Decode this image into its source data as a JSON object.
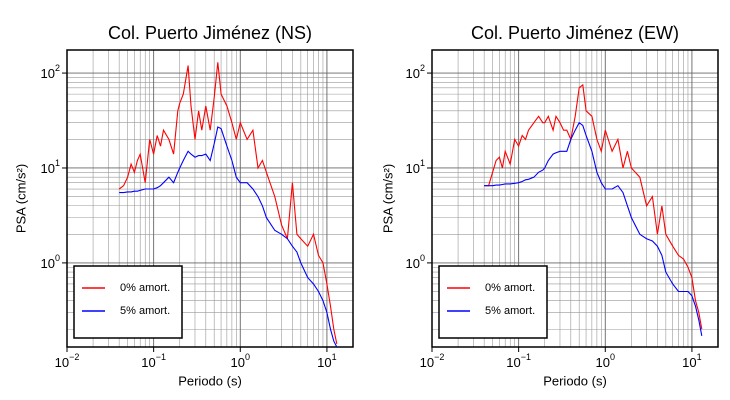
{
  "chart_data": [
    {
      "type": "line",
      "title": "Col. Puerto Jiménez (NS)",
      "xlabel": "Periodo (s)",
      "ylabel": "PSA (cm/s²)",
      "xscale": "log",
      "yscale": "log",
      "grid": true,
      "legend": "lower left",
      "xlim": [
        0.01,
        20
      ],
      "ylim": [
        0.13,
        175
      ],
      "xticks": [
        {
          "value": 0.01,
          "label": "10",
          "sup": "−2"
        },
        {
          "value": 0.1,
          "label": "10",
          "sup": "−1"
        },
        {
          "value": 1,
          "label": "10",
          "sup": "0"
        },
        {
          "value": 10,
          "label": "10",
          "sup": "1"
        }
      ],
      "yticks": [
        {
          "value": 1,
          "label": "10",
          "sup": "0"
        },
        {
          "value": 10,
          "label": "10",
          "sup": "1"
        },
        {
          "value": 100,
          "label": "10",
          "sup": "2"
        }
      ],
      "x": [
        0.04,
        0.045,
        0.05,
        0.055,
        0.06,
        0.065,
        0.07,
        0.08,
        0.09,
        0.1,
        0.11,
        0.12,
        0.13,
        0.15,
        0.17,
        0.19,
        0.2,
        0.22,
        0.25,
        0.27,
        0.3,
        0.33,
        0.36,
        0.4,
        0.45,
        0.5,
        0.55,
        0.6,
        0.7,
        0.8,
        0.9,
        1.0,
        1.2,
        1.4,
        1.6,
        1.8,
        2,
        2.5,
        3,
        3.5,
        4,
        4.5,
        5,
        6,
        7,
        8,
        9,
        10,
        11,
        12,
        13
      ],
      "series": [
        {
          "name": "0% amort.",
          "color": "#ff0000",
          "values": [
            6,
            6.5,
            8,
            11,
            9,
            12,
            14,
            7,
            20,
            14,
            22,
            17,
            25,
            20,
            14,
            40,
            48,
            60,
            120,
            45,
            20,
            40,
            25,
            45,
            25,
            55,
            130,
            60,
            45,
            30,
            20,
            30,
            20,
            25,
            10,
            12,
            9,
            5,
            2.5,
            1.8,
            7,
            2,
            1.8,
            1.5,
            2,
            1.2,
            1,
            0.6,
            0.35,
            0.2,
            0.14
          ]
        },
        {
          "name": "5% amort.",
          "color": "#0000ff",
          "values": [
            5.5,
            5.5,
            5.6,
            5.6,
            5.7,
            5.7,
            5.8,
            6,
            6,
            6,
            6.2,
            6.5,
            7,
            8,
            7,
            9,
            10,
            12,
            15,
            14,
            13,
            13.5,
            13.5,
            14,
            12,
            18,
            27,
            26,
            17,
            12,
            8,
            7,
            7,
            6,
            5,
            4,
            3,
            2.2,
            2,
            1.8,
            1.5,
            1.3,
            1,
            0.7,
            0.6,
            0.5,
            0.4,
            0.3,
            0.2,
            0.15,
            0.13
          ]
        }
      ]
    },
    {
      "type": "line",
      "title": "Col. Puerto Jiménez (EW)",
      "xlabel": "Periodo (s)",
      "ylabel": "PSA (cm/s²)",
      "xscale": "log",
      "yscale": "log",
      "grid": true,
      "legend": "lower left",
      "xlim": [
        0.01,
        20
      ],
      "ylim": [
        0.13,
        175
      ],
      "xticks": [
        {
          "value": 0.01,
          "label": "10",
          "sup": "−2"
        },
        {
          "value": 0.1,
          "label": "10",
          "sup": "−1"
        },
        {
          "value": 1,
          "label": "10",
          "sup": "0"
        },
        {
          "value": 10,
          "label": "10",
          "sup": "1"
        }
      ],
      "yticks": [
        {
          "value": 1,
          "label": "10",
          "sup": "0"
        },
        {
          "value": 10,
          "label": "10",
          "sup": "1"
        },
        {
          "value": 100,
          "label": "10",
          "sup": "2"
        }
      ],
      "x": [
        0.04,
        0.045,
        0.05,
        0.055,
        0.06,
        0.065,
        0.07,
        0.08,
        0.09,
        0.1,
        0.11,
        0.12,
        0.13,
        0.15,
        0.17,
        0.19,
        0.2,
        0.22,
        0.25,
        0.27,
        0.3,
        0.33,
        0.36,
        0.4,
        0.45,
        0.5,
        0.55,
        0.6,
        0.7,
        0.8,
        0.9,
        1.0,
        1.2,
        1.4,
        1.6,
        1.8,
        2,
        2.5,
        3,
        3.5,
        4,
        4.5,
        5,
        6,
        7,
        8,
        9,
        10,
        11,
        12,
        13
      ],
      "series": [
        {
          "name": "0% amort.",
          "color": "#ff0000",
          "values": [
            6.5,
            6.5,
            9,
            12,
            13,
            10,
            15,
            11,
            20,
            17,
            22,
            20,
            25,
            30,
            35,
            30,
            30,
            35,
            25,
            35,
            30,
            25,
            25,
            20,
            35,
            70,
            75,
            40,
            35,
            20,
            15,
            25,
            15,
            20,
            10,
            15,
            10,
            8,
            4,
            5,
            2,
            4,
            2,
            1.5,
            1.2,
            1.1,
            0.9,
            0.7,
            0.4,
            0.3,
            0.2
          ]
        },
        {
          "name": "5% amort.",
          "color": "#0000ff",
          "values": [
            6.5,
            6.5,
            6.5,
            6.6,
            6.6,
            6.7,
            6.8,
            6.8,
            6.9,
            7,
            7.2,
            7.5,
            7.6,
            8,
            9,
            9.5,
            10,
            12,
            14,
            14.5,
            15,
            15,
            15,
            20,
            25,
            30,
            28,
            22,
            15,
            9,
            7,
            6,
            6,
            6.5,
            5.5,
            4,
            3,
            2,
            1.8,
            1.7,
            1.5,
            1.2,
            0.8,
            0.6,
            0.5,
            0.5,
            0.5,
            0.45,
            0.35,
            0.25,
            0.17
          ]
        }
      ]
    }
  ]
}
